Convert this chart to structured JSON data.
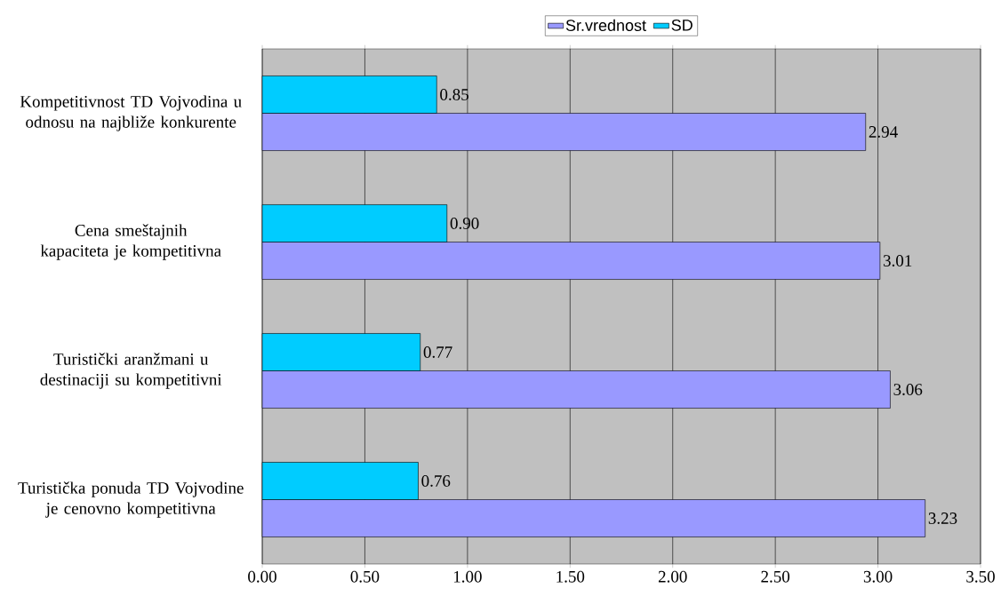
{
  "chart_data": {
    "type": "bar",
    "orientation": "horizontal",
    "categories": [
      "Kompetitivnost TD Vojvodina u odnosu na najbliže konkurente",
      "Cena smeštajnih kapaciteta je kompetitivna",
      "Turistički aranžmani u destinaciji su kompetitivni",
      "Turistička ponuda TD Vojvodine je cenovno kompetitivna"
    ],
    "series": [
      {
        "name": "Sr.vrednost",
        "color": "#9999ff",
        "values": [
          2.94,
          3.01,
          3.06,
          3.23
        ],
        "value_labels": [
          "2.94",
          "3.01",
          "3.06",
          "3.23"
        ]
      },
      {
        "name": "SD",
        "color": "#00ccff",
        "values": [
          0.85,
          0.9,
          0.77,
          0.76
        ],
        "value_labels": [
          "0.85",
          "0.90",
          "0.77",
          "0.76"
        ]
      }
    ],
    "xlim": [
      0,
      3.5
    ],
    "xticks": [
      {
        "value": 0,
        "label": "0.00"
      },
      {
        "value": 0.5,
        "label": "0.50"
      },
      {
        "value": 1,
        "label": "1.00"
      },
      {
        "value": 1.5,
        "label": "1.50"
      },
      {
        "value": 2,
        "label": "2.00"
      },
      {
        "value": 2.5,
        "label": "2.50"
      },
      {
        "value": 3,
        "label": "3.00"
      },
      {
        "value": 3.5,
        "label": "3.50"
      }
    ],
    "grid": "x",
    "legend": "top"
  }
}
